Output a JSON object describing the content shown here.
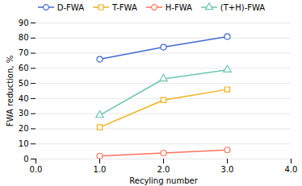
{
  "chart_data": {
    "type": "line",
    "xlabel": "Recyling number",
    "ylabel": "FWA reduction, %",
    "x": [
      1,
      2,
      3
    ],
    "series": [
      {
        "name": "D-FWA",
        "values": [
          66,
          74,
          81
        ],
        "marker": "circle"
      },
      {
        "name": "T-FWA",
        "values": [
          21,
          39,
          46
        ],
        "marker": "square"
      },
      {
        "name": "H-FWA",
        "values": [
          2,
          4,
          6
        ],
        "marker": "circle"
      },
      {
        "name": "(T+H)-FWA",
        "values": [
          29,
          53,
          59
        ],
        "marker": "triangle"
      }
    ],
    "xlim": [
      0,
      4
    ],
    "ylim": [
      0,
      90
    ],
    "xticks": [
      0,
      1,
      2,
      3,
      4
    ],
    "yticks": [
      0,
      10,
      20,
      30,
      40,
      50,
      60,
      70,
      80,
      90
    ],
    "grid": true,
    "legend": "top"
  }
}
